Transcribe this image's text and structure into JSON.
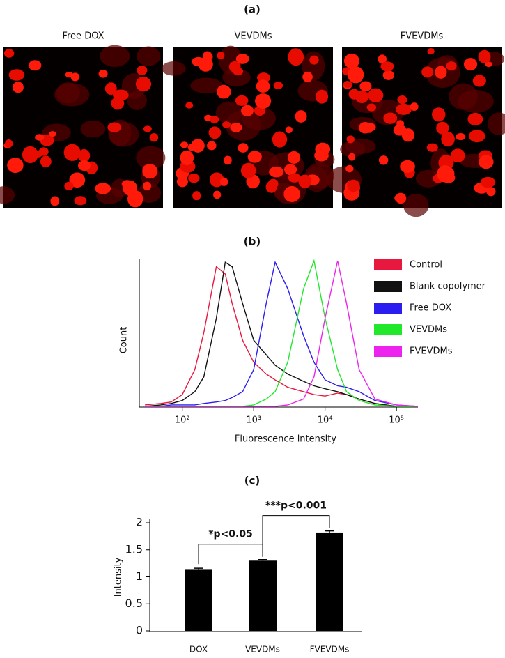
{
  "panel_a": {
    "label": "(a)",
    "images": [
      "Free DOX",
      "VEVDMs",
      "FVEVDMs"
    ]
  },
  "chart_data": [
    {
      "type": "line",
      "label": "(b)",
      "x_label": "Fluorescence intensity",
      "y_label": "Count",
      "log_x": true,
      "xlim": [
        25,
        200000
      ],
      "ylim": [
        0,
        100
      ],
      "xticks": [
        {
          "value": 100,
          "label": "10²"
        },
        {
          "value": 1000,
          "label": "10³"
        },
        {
          "value": 10000,
          "label": "10⁴"
        },
        {
          "value": 100000,
          "label": "10⁵"
        }
      ],
      "x": [
        30,
        50,
        70,
        100,
        150,
        200,
        300,
        400,
        500,
        700,
        1000,
        1500,
        2000,
        3000,
        5000,
        7000,
        10000,
        15000,
        20000,
        30000,
        50000,
        100000,
        200000
      ],
      "legend": "upper right",
      "series": [
        {
          "name": "Control",
          "color": "#e8173e",
          "values": [
            1,
            2,
            3,
            8,
            25,
            50,
            95,
            90,
            70,
            45,
            30,
            22,
            18,
            13,
            10,
            8,
            7,
            9,
            8,
            5,
            2,
            0,
            0
          ]
        },
        {
          "name": "Blank copolymer",
          "color": "#111111",
          "values": [
            0,
            1,
            2,
            4,
            10,
            20,
            60,
            98,
            95,
            70,
            45,
            35,
            28,
            22,
            17,
            14,
            12,
            10,
            8,
            5,
            2,
            0,
            0
          ]
        },
        {
          "name": "Free DOX",
          "color": "#2b1cf0",
          "values": [
            0,
            0,
            1,
            1,
            1,
            2,
            3,
            4,
            6,
            10,
            25,
            70,
            98,
            80,
            48,
            30,
            18,
            14,
            13,
            10,
            4,
            1,
            0
          ]
        },
        {
          "name": "VEVDMs",
          "color": "#22e82c",
          "values": [
            0,
            0,
            0,
            0,
            0,
            0,
            0,
            0,
            0,
            0,
            1,
            5,
            10,
            30,
            80,
            99,
            60,
            25,
            10,
            4,
            1,
            0,
            0
          ]
        },
        {
          "name": "FVEVDMs",
          "color": "#ee22ee",
          "values": [
            0,
            0,
            0,
            0,
            0,
            0,
            0,
            0,
            0,
            0,
            0,
            0,
            0,
            1,
            5,
            20,
            60,
            99,
            70,
            25,
            5,
            1,
            0
          ]
        }
      ]
    },
    {
      "type": "bar",
      "label": "(c)",
      "y_label": "Intensity",
      "color": "#000000",
      "categories": [
        "DOX",
        "VEVDMs",
        "FVEVDMs"
      ],
      "values": [
        1.13,
        1.3,
        1.82
      ],
      "errors": [
        0.03,
        0.02,
        0.03
      ],
      "ylim": [
        0,
        2
      ],
      "yticks": [
        0,
        0.5,
        1,
        1.5,
        2
      ],
      "annotations": [
        "*p<0.05",
        "***p<0.001"
      ]
    }
  ]
}
